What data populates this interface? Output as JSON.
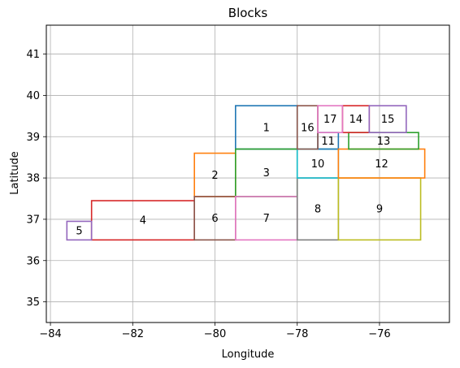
{
  "chart_data": {
    "type": "rectangles",
    "title": "Blocks",
    "xlabel": "Longitude",
    "ylabel": "Latitude",
    "xlim": [
      -84.1,
      -74.3
    ],
    "ylim": [
      34.5,
      41.7
    ],
    "xticks": [
      -84,
      -82,
      -80,
      -78,
      -76
    ],
    "yticks": [
      35,
      36,
      37,
      38,
      39,
      40,
      41
    ],
    "xtick_labels": [
      "−84",
      "−82",
      "−80",
      "−78",
      "−76"
    ],
    "ytick_labels": [
      "35",
      "36",
      "37",
      "38",
      "39",
      "40",
      "41"
    ],
    "grid": true,
    "blocks": [
      {
        "label": "1",
        "x0": -79.5,
        "x1": -78.0,
        "y0": 38.7,
        "y1": 39.75,
        "color": "#1f77b4"
      },
      {
        "label": "2",
        "x0": -80.5,
        "x1": -79.5,
        "y0": 37.55,
        "y1": 38.6,
        "color": "#ff7f0e"
      },
      {
        "label": "3",
        "x0": -79.5,
        "x1": -78.0,
        "y0": 37.55,
        "y1": 38.7,
        "color": "#2ca02c"
      },
      {
        "label": "4",
        "x0": -83.0,
        "x1": -80.5,
        "y0": 36.5,
        "y1": 37.45,
        "color": "#d62728"
      },
      {
        "label": "5",
        "x0": -83.6,
        "x1": -83.0,
        "y0": 36.5,
        "y1": 36.95,
        "color": "#9467bd"
      },
      {
        "label": "6",
        "x0": -80.5,
        "x1": -79.5,
        "y0": 36.5,
        "y1": 37.55,
        "color": "#8c564b"
      },
      {
        "label": "7",
        "x0": -79.5,
        "x1": -78.0,
        "y0": 36.5,
        "y1": 37.55,
        "color": "#e377c2"
      },
      {
        "label": "8",
        "x0": -78.0,
        "x1": -77.0,
        "y0": 36.5,
        "y1": 38.0,
        "color": "#7f7f7f"
      },
      {
        "label": "9",
        "x0": -77.0,
        "x1": -75.0,
        "y0": 36.5,
        "y1": 38.0,
        "color": "#bcbd22"
      },
      {
        "label": "10",
        "x0": -78.0,
        "x1": -77.0,
        "y0": 38.0,
        "y1": 38.7,
        "color": "#17becf"
      },
      {
        "label": "11",
        "x0": -77.5,
        "x1": -77.0,
        "y0": 38.7,
        "y1": 39.1,
        "color": "#1f77b4"
      },
      {
        "label": "12",
        "x0": -77.0,
        "x1": -74.9,
        "y0": 38.0,
        "y1": 38.7,
        "color": "#ff7f0e"
      },
      {
        "label": "13",
        "x0": -76.75,
        "x1": -75.05,
        "y0": 38.7,
        "y1": 39.1,
        "color": "#2ca02c"
      },
      {
        "label": "14",
        "x0": -76.9,
        "x1": -76.25,
        "y0": 39.1,
        "y1": 39.75,
        "color": "#d62728"
      },
      {
        "label": "15",
        "x0": -76.25,
        "x1": -75.35,
        "y0": 39.1,
        "y1": 39.75,
        "color": "#9467bd"
      },
      {
        "label": "16",
        "x0": -78.0,
        "x1": -77.5,
        "y0": 38.7,
        "y1": 39.75,
        "color": "#8c564b"
      },
      {
        "label": "17",
        "x0": -77.5,
        "x1": -76.9,
        "y0": 39.1,
        "y1": 39.75,
        "color": "#e377c2"
      }
    ]
  },
  "colors": {
    "grid": "#b0b0b0",
    "axes": "#000000",
    "background": "#ffffff"
  }
}
